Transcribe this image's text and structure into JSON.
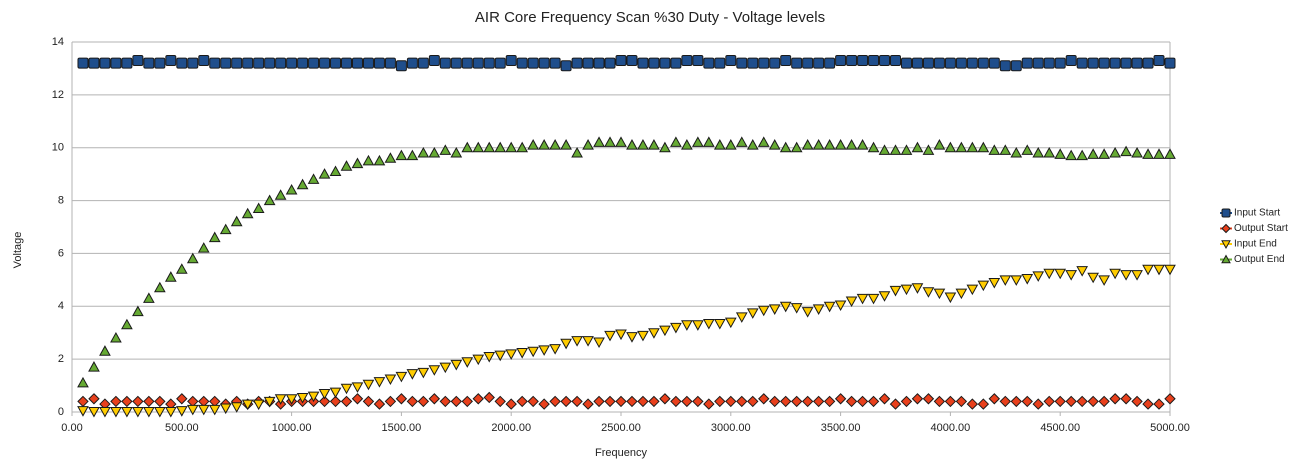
{
  "chart_data": {
    "type": "line",
    "title": "AIR Core Frequency Scan %30 Duty - Voltage levels",
    "x_label": "Frequency",
    "y_label": "Voltage",
    "x": [
      50,
      100,
      150,
      200,
      250,
      300,
      350,
      400,
      450,
      500,
      550,
      600,
      650,
      700,
      750,
      800,
      850,
      900,
      950,
      1000,
      1050,
      1100,
      1150,
      1200,
      1250,
      1300,
      1350,
      1400,
      1450,
      1500,
      1550,
      1600,
      1650,
      1700,
      1750,
      1800,
      1850,
      1900,
      1950,
      2000,
      2050,
      2100,
      2150,
      2200,
      2250,
      2300,
      2350,
      2400,
      2450,
      2500,
      2550,
      2600,
      2650,
      2700,
      2750,
      2800,
      2850,
      2900,
      2950,
      3000,
      3050,
      3100,
      3150,
      3200,
      3250,
      3300,
      3350,
      3400,
      3450,
      3500,
      3550,
      3600,
      3650,
      3700,
      3750,
      3800,
      3850,
      3900,
      3950,
      4000,
      4050,
      4100,
      4150,
      4200,
      4250,
      4300,
      4350,
      4400,
      4450,
      4500,
      4550,
      4600,
      4650,
      4700,
      4750,
      4800,
      4850,
      4900,
      4950,
      5000
    ],
    "series": [
      {
        "name": "Input Start",
        "color": "#1f4e8c",
        "values": [
          13.2,
          13.2,
          13.2,
          13.2,
          13.2,
          13.3,
          13.2,
          13.2,
          13.3,
          13.2,
          13.2,
          13.3,
          13.2,
          13.2,
          13.2,
          13.2,
          13.2,
          13.2,
          13.2,
          13.2,
          13.2,
          13.2,
          13.2,
          13.2,
          13.2,
          13.2,
          13.2,
          13.2,
          13.2,
          13.1,
          13.2,
          13.2,
          13.3,
          13.2,
          13.2,
          13.2,
          13.2,
          13.2,
          13.2,
          13.3,
          13.2,
          13.2,
          13.2,
          13.2,
          13.1,
          13.2,
          13.2,
          13.2,
          13.2,
          13.3,
          13.3,
          13.2,
          13.2,
          13.2,
          13.2,
          13.3,
          13.3,
          13.2,
          13.2,
          13.3,
          13.2,
          13.2,
          13.2,
          13.2,
          13.3,
          13.2,
          13.2,
          13.2,
          13.2,
          13.3,
          13.3,
          13.3,
          13.3,
          13.3,
          13.3,
          13.2,
          13.2,
          13.2,
          13.2,
          13.2,
          13.2,
          13.2,
          13.2,
          13.2,
          13.1,
          13.1,
          13.2,
          13.2,
          13.2,
          13.2,
          13.3,
          13.2,
          13.2,
          13.2,
          13.2,
          13.2,
          13.2,
          13.2,
          13.3,
          13.2
        ]
      },
      {
        "name": "Output Start",
        "color": "#e8401c",
        "values": [
          0.4,
          0.5,
          0.3,
          0.4,
          0.4,
          0.4,
          0.4,
          0.4,
          0.3,
          0.5,
          0.4,
          0.4,
          0.4,
          0.3,
          0.4,
          0.3,
          0.4,
          0.4,
          0.3,
          0.4,
          0.4,
          0.4,
          0.4,
          0.4,
          0.4,
          0.5,
          0.4,
          0.3,
          0.4,
          0.5,
          0.4,
          0.4,
          0.5,
          0.4,
          0.4,
          0.4,
          0.5,
          0.55,
          0.4,
          0.3,
          0.4,
          0.4,
          0.3,
          0.4,
          0.4,
          0.4,
          0.3,
          0.4,
          0.4,
          0.4,
          0.4,
          0.4,
          0.4,
          0.5,
          0.4,
          0.4,
          0.4,
          0.3,
          0.4,
          0.4,
          0.4,
          0.4,
          0.5,
          0.4,
          0.4,
          0.4,
          0.4,
          0.4,
          0.4,
          0.5,
          0.4,
          0.4,
          0.4,
          0.5,
          0.3,
          0.4,
          0.5,
          0.5,
          0.4,
          0.4,
          0.4,
          0.3,
          0.3,
          0.5,
          0.4,
          0.4,
          0.4,
          0.3,
          0.4,
          0.4,
          0.4,
          0.4,
          0.4,
          0.4,
          0.5,
          0.5,
          0.4,
          0.3,
          0.3,
          0.5
        ]
      },
      {
        "name": "Input End",
        "color": "#ffcc00",
        "values": [
          0.05,
          0.02,
          0.02,
          0.02,
          0.02,
          0.02,
          0.02,
          0.02,
          0.02,
          0.05,
          0.1,
          0.1,
          0.1,
          0.15,
          0.2,
          0.3,
          0.3,
          0.4,
          0.5,
          0.5,
          0.55,
          0.6,
          0.7,
          0.75,
          0.9,
          0.95,
          1.05,
          1.15,
          1.25,
          1.35,
          1.45,
          1.5,
          1.6,
          1.7,
          1.8,
          1.9,
          2.0,
          2.1,
          2.15,
          2.2,
          2.25,
          2.3,
          2.35,
          2.4,
          2.6,
          2.7,
          2.7,
          2.65,
          2.9,
          2.95,
          2.85,
          2.9,
          3.0,
          3.1,
          3.2,
          3.3,
          3.3,
          3.35,
          3.35,
          3.4,
          3.6,
          3.75,
          3.85,
          3.9,
          4.0,
          3.95,
          3.8,
          3.9,
          4.0,
          4.05,
          4.2,
          4.3,
          4.3,
          4.4,
          4.6,
          4.65,
          4.7,
          4.55,
          4.5,
          4.35,
          4.5,
          4.65,
          4.8,
          4.9,
          5.0,
          5.0,
          5.05,
          5.15,
          5.25,
          5.25,
          5.2,
          5.35,
          5.1,
          5.0,
          5.25,
          5.2,
          5.2,
          5.4,
          5.4,
          5.4
        ]
      },
      {
        "name": "Output End",
        "color": "#66aa33",
        "values": [
          1.1,
          1.7,
          2.3,
          2.8,
          3.3,
          3.8,
          4.3,
          4.7,
          5.1,
          5.4,
          5.8,
          6.2,
          6.6,
          6.9,
          7.2,
          7.5,
          7.7,
          8.0,
          8.2,
          8.4,
          8.6,
          8.8,
          9.0,
          9.1,
          9.3,
          9.4,
          9.5,
          9.5,
          9.6,
          9.7,
          9.7,
          9.8,
          9.8,
          9.9,
          9.8,
          10.0,
          10.0,
          10.0,
          10.0,
          10.0,
          10.0,
          10.1,
          10.1,
          10.1,
          10.1,
          9.8,
          10.1,
          10.2,
          10.2,
          10.2,
          10.1,
          10.1,
          10.1,
          10.0,
          10.2,
          10.1,
          10.2,
          10.2,
          10.1,
          10.1,
          10.2,
          10.1,
          10.2,
          10.1,
          10.0,
          10.0,
          10.1,
          10.1,
          10.1,
          10.1,
          10.1,
          10.1,
          10.0,
          9.9,
          9.9,
          9.9,
          10.0,
          9.9,
          10.1,
          10.0,
          10.0,
          10.0,
          10.0,
          9.9,
          9.9,
          9.8,
          9.9,
          9.8,
          9.8,
          9.75,
          9.7,
          9.7,
          9.75,
          9.75,
          9.8,
          9.85,
          9.8,
          9.75,
          9.75,
          9.75
        ]
      }
    ],
    "xlim": [
      0,
      5000
    ],
    "xticks": [
      {
        "value": 0,
        "label": "0.00"
      },
      {
        "value": 500,
        "label": "500.00"
      },
      {
        "value": 1000,
        "label": "1000.00"
      },
      {
        "value": 1500,
        "label": "1500.00"
      },
      {
        "value": 2000,
        "label": "2000.00"
      },
      {
        "value": 2500,
        "label": "2500.00"
      },
      {
        "value": 3000,
        "label": "3000.00"
      },
      {
        "value": 3500,
        "label": "3500.00"
      },
      {
        "value": 4000,
        "label": "4000.00"
      },
      {
        "value": 4500,
        "label": "4500.00"
      },
      {
        "value": 5000,
        "label": "5000.00"
      }
    ],
    "ylim": [
      0,
      14
    ],
    "yticks": [
      0,
      2,
      4,
      6,
      8,
      10,
      12,
      14
    ],
    "grid": true,
    "legend": "right"
  }
}
